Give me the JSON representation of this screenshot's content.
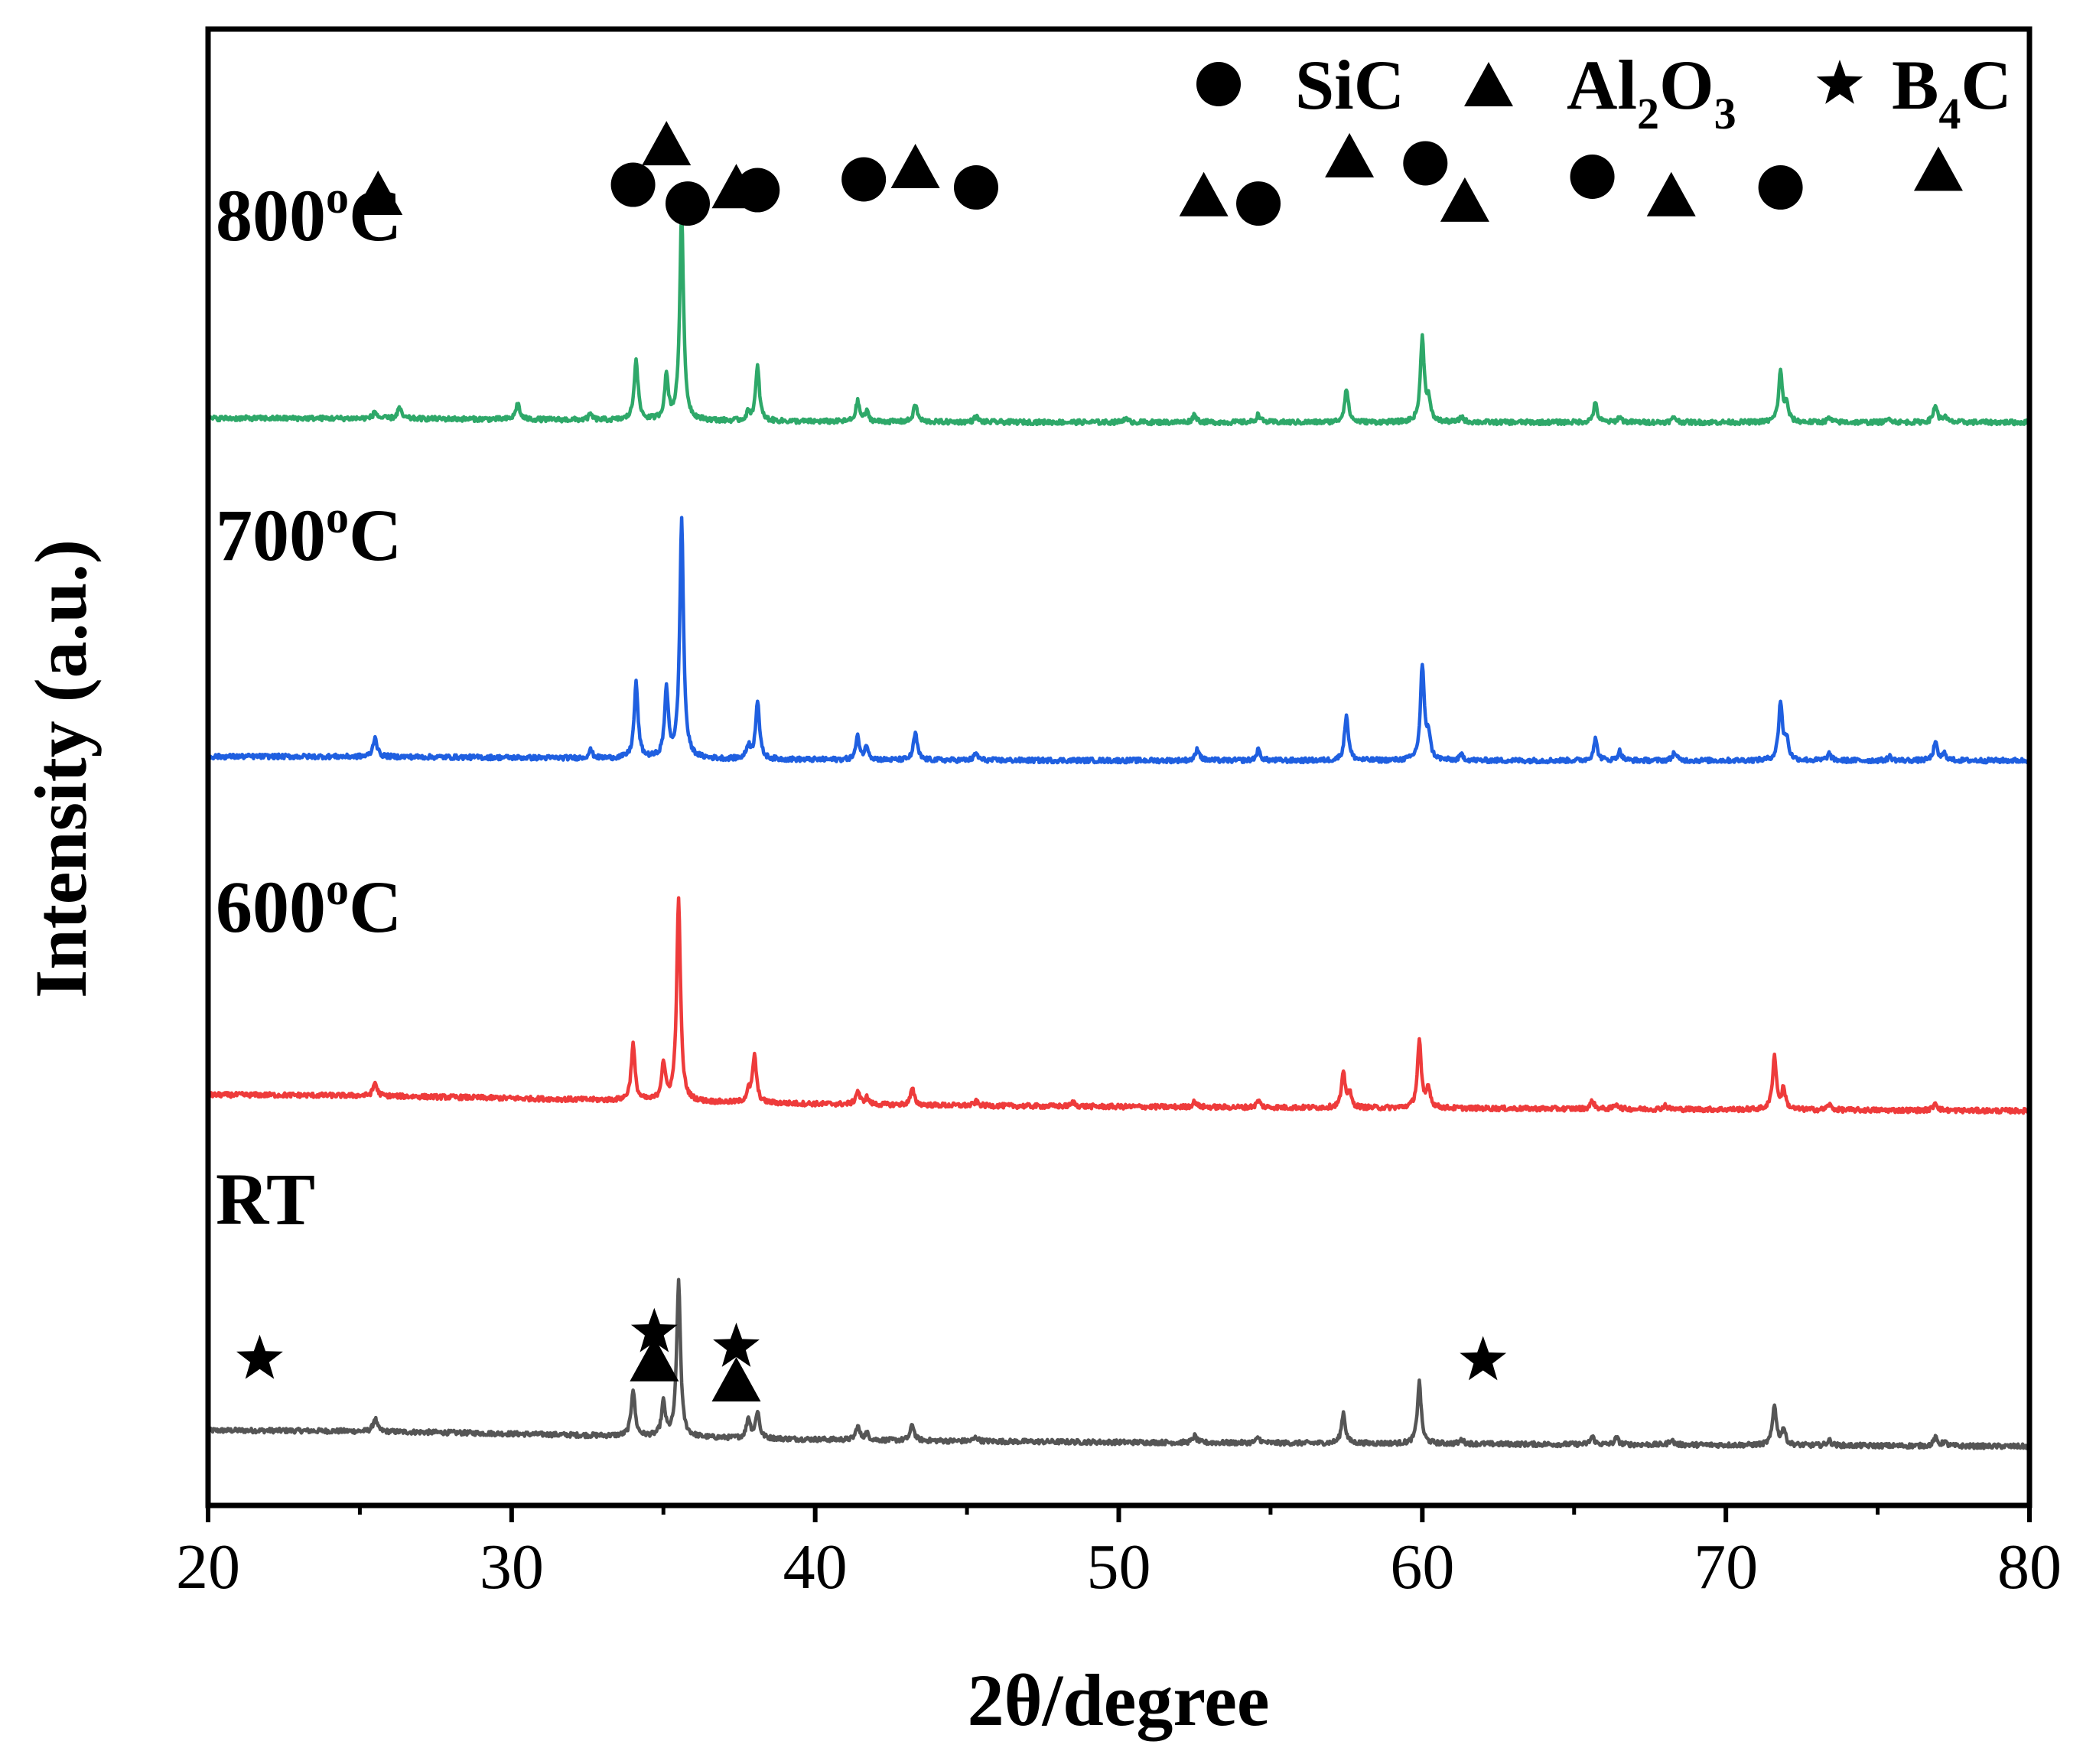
{
  "chart_data": {
    "type": "line",
    "title": "",
    "xlabel": "2θ/degree",
    "ylabel": "Intensity (a.u.)",
    "xlim": [
      20,
      80
    ],
    "x_ticks": [
      20,
      30,
      40,
      50,
      60,
      70,
      80
    ],
    "x_tick_labels": [
      "20",
      "30",
      "40",
      "50",
      "60",
      "70",
      "80"
    ],
    "y_ticks_shown": false,
    "legend": {
      "position": "top-right",
      "entries": [
        {
          "marker": "circle",
          "phase": "SiC",
          "label_parts": [
            [
              "SiC",
              ""
            ]
          ]
        },
        {
          "marker": "triangle",
          "phase": "Al2O3",
          "label_parts": [
            [
              "Al",
              ""
            ],
            [
              "2",
              "sub"
            ],
            [
              "O",
              ""
            ],
            [
              "3",
              "sub"
            ]
          ]
        },
        {
          "marker": "star",
          "phase": "B4C",
          "label_parts": [
            [
              "B",
              ""
            ],
            [
              "4",
              "sub"
            ],
            [
              "C",
              ""
            ]
          ]
        }
      ]
    },
    "series": [
      {
        "name": "RT",
        "label_base": "RT",
        "label_sup": "",
        "label_tail": "",
        "color": "#555555",
        "baseline": 0,
        "background": 0.6,
        "tilt": -0.6,
        "peaks": [
          [
            25.5,
            1.0
          ],
          [
            34.0,
            3.5
          ],
          [
            35.0,
            2.5
          ],
          [
            35.5,
            11.5
          ],
          [
            37.8,
            1.5
          ],
          [
            38.1,
            2.0
          ],
          [
            41.4,
            1.0
          ],
          [
            41.7,
            0.5
          ],
          [
            43.2,
            1.2
          ],
          [
            45.3,
            0.3
          ],
          [
            52.5,
            0.5
          ],
          [
            54.6,
            0.4
          ],
          [
            57.4,
            2.3
          ],
          [
            59.9,
            4.6
          ],
          [
            61.3,
            0.3
          ],
          [
            65.6,
            0.6
          ],
          [
            66.4,
            0.5
          ],
          [
            68.2,
            0.4
          ],
          [
            71.6,
            3.0
          ],
          [
            71.9,
            1.2
          ],
          [
            73.4,
            0.4
          ],
          [
            76.9,
            0.6
          ],
          [
            77.2,
            0.3
          ]
        ]
      },
      {
        "name": "600°C",
        "label_base": "600",
        "label_sup": "o",
        "label_tail": "C",
        "color": "#ee3b3b",
        "baseline": 25,
        "background": 0.6,
        "tilt": -0.6,
        "peaks": [
          [
            25.5,
            1.0
          ],
          [
            34.0,
            4.2
          ],
          [
            35.0,
            2.8
          ],
          [
            35.5,
            15.0
          ],
          [
            37.8,
            0.8
          ],
          [
            38.0,
            3.5
          ],
          [
            41.4,
            1.0
          ],
          [
            41.7,
            0.5
          ],
          [
            43.2,
            1.2
          ],
          [
            45.3,
            0.3
          ],
          [
            48.5,
            0.3
          ],
          [
            52.5,
            0.4
          ],
          [
            54.6,
            0.5
          ],
          [
            57.4,
            2.5
          ],
          [
            57.6,
            1.0
          ],
          [
            59.9,
            5.0
          ],
          [
            60.2,
            1.5
          ],
          [
            65.6,
            0.6
          ],
          [
            66.4,
            0.4
          ],
          [
            68.0,
            0.3
          ],
          [
            71.6,
            4.0
          ],
          [
            71.9,
            1.5
          ],
          [
            73.4,
            0.4
          ],
          [
            76.9,
            0.6
          ]
        ]
      },
      {
        "name": "700°C",
        "label_base": "700",
        "label_sup": "o",
        "label_tail": "C",
        "color": "#1f5fe0",
        "baseline": 50.5,
        "background": 0.3,
        "tilt": 0,
        "peaks": [
          [
            25.5,
            1.5
          ],
          [
            32.6,
            0.6
          ],
          [
            34.1,
            5.6
          ],
          [
            35.1,
            5.0
          ],
          [
            35.6,
            17.7
          ],
          [
            37.8,
            1.0
          ],
          [
            38.1,
            4.4
          ],
          [
            41.4,
            1.7
          ],
          [
            41.7,
            1.0
          ],
          [
            43.3,
            2.0
          ],
          [
            45.3,
            0.5
          ],
          [
            52.6,
            0.9
          ],
          [
            54.6,
            0.8
          ],
          [
            57.5,
            3.4
          ],
          [
            60.0,
            7.0
          ],
          [
            60.2,
            1.8
          ],
          [
            61.3,
            0.4
          ],
          [
            65.7,
            1.6
          ],
          [
            66.5,
            0.7
          ],
          [
            68.3,
            0.6
          ],
          [
            71.8,
            4.3
          ],
          [
            72.0,
            1.5
          ],
          [
            73.4,
            0.5
          ],
          [
            75.4,
            0.3
          ],
          [
            76.9,
            1.3
          ],
          [
            77.2,
            0.5
          ]
        ]
      },
      {
        "name": "800°C",
        "label_base": "800",
        "label_sup": "o",
        "label_tail": "C",
        "color": "#2ea869",
        "baseline": 75.7,
        "background": 0.3,
        "tilt": 0,
        "peaks": [
          [
            25.5,
            0.5
          ],
          [
            26.3,
            0.8
          ],
          [
            30.2,
            1.2
          ],
          [
            32.6,
            0.4
          ],
          [
            34.1,
            4.6
          ],
          [
            35.1,
            3.2
          ],
          [
            35.6,
            15.5
          ],
          [
            37.8,
            0.6
          ],
          [
            38.1,
            4.0
          ],
          [
            41.4,
            1.5
          ],
          [
            41.7,
            0.7
          ],
          [
            43.3,
            1.3
          ],
          [
            45.3,
            0.4
          ],
          [
            50.2,
            0.3
          ],
          [
            52.5,
            0.6
          ],
          [
            54.6,
            0.6
          ],
          [
            57.5,
            2.5
          ],
          [
            60.0,
            6.3
          ],
          [
            60.2,
            1.5
          ],
          [
            61.3,
            0.4
          ],
          [
            65.7,
            1.4
          ],
          [
            66.5,
            0.4
          ],
          [
            68.3,
            0.4
          ],
          [
            71.8,
            3.7
          ],
          [
            72.0,
            1.2
          ],
          [
            73.4,
            0.3
          ],
          [
            75.4,
            0.3
          ],
          [
            76.9,
            1.3
          ],
          [
            77.2,
            0.4
          ]
        ]
      }
    ],
    "phase_markers": [
      {
        "series": "800°C",
        "phase": "Al2O3",
        "x": 25.6,
        "y": 92.8
      },
      {
        "series": "800°C",
        "phase": "SiC",
        "x": 34.0,
        "y": 93.4
      },
      {
        "series": "800°C",
        "phase": "Al2O3",
        "x": 35.1,
        "y": 96.5
      },
      {
        "series": "800°C",
        "phase": "SiC",
        "x": 35.8,
        "y": 92.0
      },
      {
        "series": "800°C",
        "phase": "Al2O3",
        "x": 37.4,
        "y": 93.3
      },
      {
        "series": "800°C",
        "phase": "SiC",
        "x": 38.1,
        "y": 93.0
      },
      {
        "series": "800°C",
        "phase": "SiC",
        "x": 41.6,
        "y": 93.8
      },
      {
        "series": "800°C",
        "phase": "Al2O3",
        "x": 43.3,
        "y": 94.8
      },
      {
        "series": "800°C",
        "phase": "SiC",
        "x": 45.3,
        "y": 93.2
      },
      {
        "series": "800°C",
        "phase": "Al2O3",
        "x": 52.8,
        "y": 92.7
      },
      {
        "series": "800°C",
        "phase": "SiC",
        "x": 54.6,
        "y": 92.0
      },
      {
        "series": "800°C",
        "phase": "Al2O3",
        "x": 57.6,
        "y": 95.6
      },
      {
        "series": "800°C",
        "phase": "SiC",
        "x": 60.1,
        "y": 95.0
      },
      {
        "series": "800°C",
        "phase": "Al2O3",
        "x": 61.4,
        "y": 92.3
      },
      {
        "series": "800°C",
        "phase": "SiC",
        "x": 65.6,
        "y": 94.0
      },
      {
        "series": "800°C",
        "phase": "Al2O3",
        "x": 68.2,
        "y": 92.7
      },
      {
        "series": "800°C",
        "phase": "SiC",
        "x": 71.8,
        "y": 93.2
      },
      {
        "series": "800°C",
        "phase": "Al2O3",
        "x": 77.0,
        "y": 94.6
      },
      {
        "series": "RT",
        "phase": "B4C",
        "x": 21.7,
        "y": 5.9
      },
      {
        "series": "RT",
        "phase": "B4C",
        "x": 34.7,
        "y": 7.9
      },
      {
        "series": "RT",
        "phase": "Al2O3",
        "x": 34.7,
        "y": 5.9
      },
      {
        "series": "RT",
        "phase": "B4C",
        "x": 37.4,
        "y": 6.8
      },
      {
        "series": "RT",
        "phase": "Al2O3",
        "x": 37.4,
        "y": 4.4
      },
      {
        "series": "RT",
        "phase": "B4C",
        "x": 62.0,
        "y": 5.8
      }
    ]
  }
}
